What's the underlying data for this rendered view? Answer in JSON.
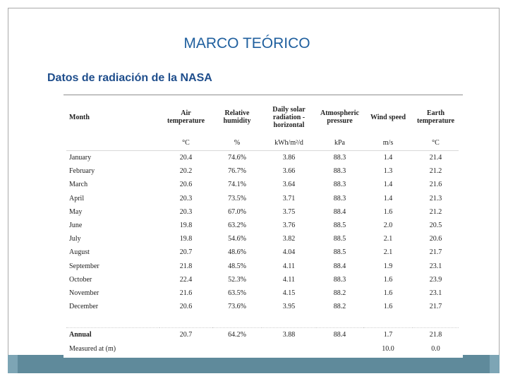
{
  "title": "MARCO TEÓRICO",
  "subtitle": "Datos de radiación de la NASA",
  "table": {
    "headers": [
      [
        "Month"
      ],
      [
        "Air",
        "temperature"
      ],
      [
        "Relative",
        "humidity"
      ],
      [
        "Daily solar",
        "radiation -",
        "horizontal"
      ],
      [
        "Atmospheric",
        "pressure"
      ],
      [
        "Wind speed"
      ],
      [
        "Earth",
        "temperature"
      ]
    ],
    "units": [
      "",
      "°C",
      "%",
      "kWh/m²/d",
      "kPa",
      "m/s",
      "°C"
    ],
    "rows": [
      [
        "January",
        "20.4",
        "74.6%",
        "3.86",
        "88.3",
        "1.4",
        "21.4"
      ],
      [
        "February",
        "20.2",
        "76.7%",
        "3.66",
        "88.3",
        "1.3",
        "21.2"
      ],
      [
        "March",
        "20.6",
        "74.1%",
        "3.64",
        "88.3",
        "1.4",
        "21.6"
      ],
      [
        "April",
        "20.3",
        "73.5%",
        "3.71",
        "88.3",
        "1.4",
        "21.3"
      ],
      [
        "May",
        "20.3",
        "67.0%",
        "3.75",
        "88.4",
        "1.6",
        "21.2"
      ],
      [
        "June",
        "19.8",
        "63.2%",
        "3.76",
        "88.5",
        "2.0",
        "20.5"
      ],
      [
        "July",
        "19.8",
        "54.6%",
        "3.82",
        "88.5",
        "2.1",
        "20.6"
      ],
      [
        "August",
        "20.7",
        "48.6%",
        "4.04",
        "88.5",
        "2.1",
        "21.7"
      ],
      [
        "September",
        "21.8",
        "48.5%",
        "4.11",
        "88.4",
        "1.9",
        "23.1"
      ],
      [
        "October",
        "22.4",
        "52.3%",
        "4.11",
        "88.3",
        "1.6",
        "23.9"
      ],
      [
        "November",
        "21.6",
        "63.5%",
        "4.15",
        "88.2",
        "1.6",
        "23.1"
      ],
      [
        "December",
        "20.6",
        "73.6%",
        "3.95",
        "88.2",
        "1.6",
        "21.7"
      ]
    ],
    "annual": [
      "Annual",
      "20.7",
      "64.2%",
      "3.88",
      "88.4",
      "1.7",
      "21.8"
    ],
    "measured": [
      "Measured at (m)",
      "",
      "",
      "",
      "",
      "10.0",
      "0.0"
    ]
  },
  "colors": {
    "title": "#1f5f9e",
    "subtitle": "#1f4e8c",
    "bar": "#5f8a9b"
  }
}
